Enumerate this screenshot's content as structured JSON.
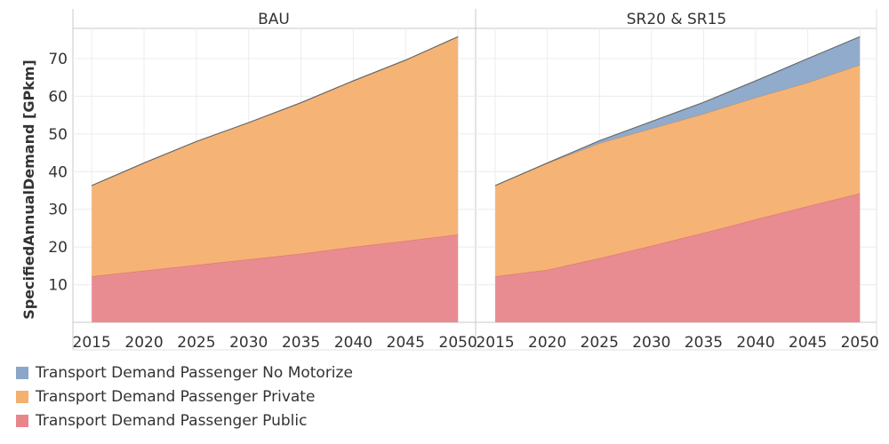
{
  "chart_data": {
    "type": "area",
    "stacked": true,
    "ylabel": "SpecifiedAnnualDemand [GPkm]",
    "ylim": [
      0,
      78
    ],
    "yticks": [
      10,
      20,
      30,
      40,
      50,
      60,
      70
    ],
    "xticks": [
      2015,
      2020,
      2025,
      2030,
      2035,
      2040,
      2045,
      2050
    ],
    "xlim": [
      2013.2,
      2051.6
    ],
    "grid": true,
    "legend_position": "bottom-left",
    "panels": [
      {
        "title": "BAU",
        "x": [
          2015,
          2020,
          2025,
          2030,
          2035,
          2040,
          2045,
          2050
        ],
        "series": [
          {
            "name": "Transport Demand Passenger Public",
            "color": "#e8868b",
            "values": [
              12.2,
              13.7,
              15.2,
              16.7,
              18.2,
              20.0,
              21.6,
              23.3
            ]
          },
          {
            "name": "Transport Demand Passenger Private",
            "color": "#f4b06e",
            "values": [
              24.1,
              28.6,
              32.8,
              36.3,
              40.1,
              44.1,
              48.0,
              52.5
            ]
          },
          {
            "name": "Transport Demand Passenger No Motorize",
            "color": "#8aa6c8",
            "values": [
              0,
              0,
              0,
              0,
              0,
              0,
              0,
              0
            ]
          }
        ]
      },
      {
        "title": "SR20 & SR15",
        "x": [
          2015,
          2020,
          2025,
          2030,
          2035,
          2040,
          2045,
          2050
        ],
        "series": [
          {
            "name": "Transport Demand Passenger Public",
            "color": "#e8868b",
            "values": [
              12.2,
              13.9,
              17.0,
              20.3,
              23.7,
              27.3,
              30.8,
              34.2
            ]
          },
          {
            "name": "Transport Demand Passenger Private",
            "color": "#f4b06e",
            "values": [
              24.1,
              28.3,
              30.5,
              31.1,
              31.6,
              32.3,
              32.8,
              34.1
            ]
          },
          {
            "name": "Transport Demand Passenger No Motorize",
            "color": "#8aa6c8",
            "values": [
              0.0,
              0.1,
              0.7,
              1.9,
              3.1,
              4.5,
              6.4,
              7.5
            ]
          }
        ]
      }
    ],
    "legend": [
      {
        "name": "Transport Demand Passenger No Motorize",
        "color": "#8aa6c8"
      },
      {
        "name": "Transport Demand Passenger Private",
        "color": "#f4b06e"
      },
      {
        "name": "Transport Demand Passenger Public",
        "color": "#e8868b"
      }
    ]
  }
}
